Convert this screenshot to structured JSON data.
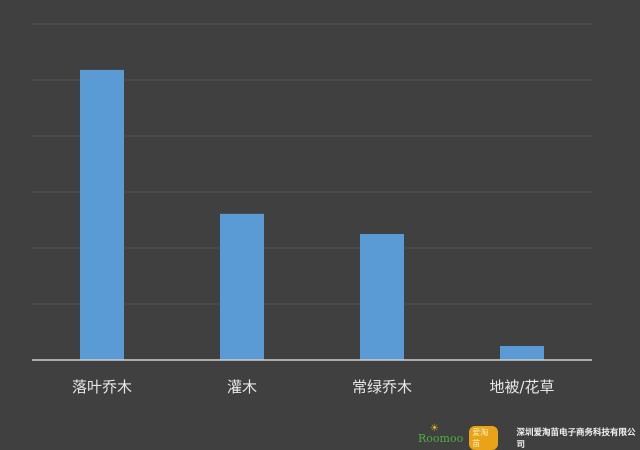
{
  "chart_data": {
    "type": "bar",
    "title": "",
    "xlabel": "",
    "ylabel": "",
    "categories": [
      "落叶乔木",
      "灌木",
      "常绿乔木",
      "地被/花草"
    ],
    "values": [
      5.18,
      2.61,
      2.25,
      0.25
    ],
    "ylim": [
      0,
      6
    ],
    "gridlines": 6,
    "grid": true,
    "bar_color": "#5b9bd5",
    "background_color": "#404040",
    "gridline_color": "#555555",
    "axis_color": "#d0d0d0"
  },
  "watermark": {
    "logo_text": "Roomoo",
    "badge_text": "爱淘苗",
    "company": "深圳爱淘苗电子商务科技有限公司"
  }
}
